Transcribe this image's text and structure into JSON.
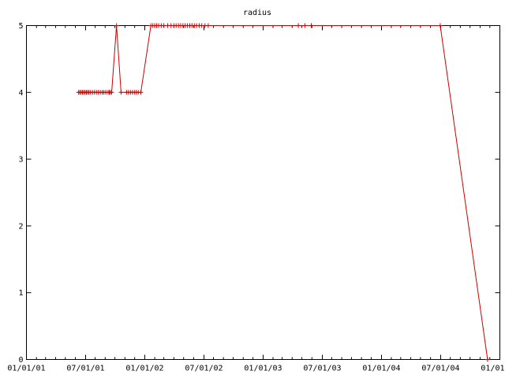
{
  "chart_data": {
    "type": "line",
    "title": "radius",
    "xlabel": "",
    "ylabel": "",
    "x_axis": {
      "kind": "date",
      "range": [
        "2001-01-01",
        "2005-01-01"
      ],
      "tick_labels": [
        "01/01/01",
        "07/01/01",
        "01/01/02",
        "07/01/02",
        "01/01/03",
        "07/01/03",
        "01/01/04",
        "07/01/04",
        "01/01/05"
      ]
    },
    "y_axis": {
      "range": [
        0,
        5
      ],
      "tick_labels": [
        "0",
        "1",
        "2",
        "3",
        "4",
        "5"
      ]
    },
    "grid": false,
    "colors": {
      "series": "#cc0000",
      "axis": "#000000"
    },
    "series": [
      {
        "marker": "plus",
        "points": [
          [
            "2001-06-11",
            4
          ],
          [
            "2001-06-15",
            4
          ],
          [
            "2001-06-19",
            4
          ],
          [
            "2001-06-23",
            4
          ],
          [
            "2001-06-27",
            4
          ],
          [
            "2001-07-01",
            4
          ],
          [
            "2001-07-05",
            4
          ],
          [
            "2001-07-09",
            4
          ],
          [
            "2001-07-13",
            4
          ],
          [
            "2001-07-18",
            4
          ],
          [
            "2001-07-24",
            4
          ],
          [
            "2001-07-30",
            4
          ],
          [
            "2001-08-05",
            4
          ],
          [
            "2001-08-11",
            4
          ],
          [
            "2001-08-17",
            4
          ],
          [
            "2001-08-23",
            4
          ],
          [
            "2001-08-28",
            4
          ],
          [
            "2001-09-03",
            4
          ],
          [
            "2001-09-10",
            4
          ],
          [
            "2001-09-14",
            4
          ],
          [
            "2001-09-17",
            4
          ],
          [
            "2001-09-21",
            4
          ],
          [
            "2001-10-06",
            5
          ],
          [
            "2001-10-20",
            4
          ],
          [
            "2001-11-06",
            4
          ],
          [
            "2001-11-12",
            4
          ],
          [
            "2001-11-18",
            4
          ],
          [
            "2001-11-24",
            4
          ],
          [
            "2001-11-30",
            4
          ],
          [
            "2001-12-06",
            4
          ],
          [
            "2001-12-12",
            4
          ],
          [
            "2001-12-20",
            4
          ],
          [
            "2002-01-20",
            5
          ],
          [
            "2002-01-26",
            5
          ],
          [
            "2002-02-01",
            5
          ],
          [
            "2002-02-07",
            5
          ],
          [
            "2002-02-13",
            5
          ],
          [
            "2002-02-21",
            5
          ],
          [
            "2002-03-01",
            5
          ],
          [
            "2002-03-13",
            5
          ],
          [
            "2002-03-23",
            5
          ],
          [
            "2002-04-01",
            5
          ],
          [
            "2002-04-08",
            5
          ],
          [
            "2002-04-15",
            5
          ],
          [
            "2002-04-22",
            5
          ],
          [
            "2002-04-29",
            5
          ],
          [
            "2002-05-06",
            5
          ],
          [
            "2002-05-13",
            5
          ],
          [
            "2002-05-20",
            5
          ],
          [
            "2002-05-27",
            5
          ],
          [
            "2002-06-03",
            5
          ],
          [
            "2002-06-10",
            5
          ],
          [
            "2002-06-18",
            5
          ],
          [
            "2002-06-26",
            5
          ],
          [
            "2002-07-06",
            5
          ],
          [
            "2002-07-16",
            5
          ],
          [
            "2003-04-20",
            5
          ],
          [
            "2003-05-10",
            5
          ],
          [
            "2003-05-30",
            5
          ],
          [
            "2004-07-01",
            5
          ],
          [
            "2004-11-24",
            0
          ]
        ]
      }
    ]
  }
}
